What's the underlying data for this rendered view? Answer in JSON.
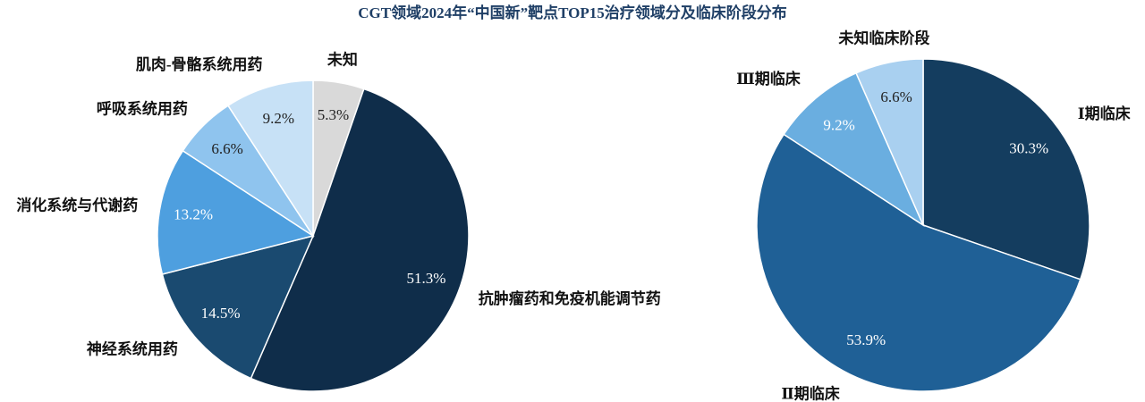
{
  "title": "CGT领域2024年“中国新”靶点TOP15治疗领域分及临床阶段分布",
  "chart_data": [
    {
      "type": "pie",
      "categories": [
        "未知",
        "抗肿瘤药和免疫机能调节药",
        "神经系统用药",
        "消化系统与代谢药",
        "呼吸系统用药",
        "肌肉-骨骼系统用药"
      ],
      "values": [
        5.3,
        51.3,
        14.5,
        13.2,
        6.6,
        9.2
      ],
      "value_labels": [
        "5.3%",
        "51.3%",
        "14.5%",
        "13.2%",
        "6.6%",
        "9.2%"
      ],
      "colors": [
        "#d9d9d9",
        "#0f2d4a",
        "#1a4a70",
        "#4e9fdf",
        "#8fc4ee",
        "#c7e1f6"
      ]
    },
    {
      "type": "pie",
      "categories": [
        "Ⅰ期临床",
        "Ⅱ期临床",
        "Ⅲ期临床",
        "未知临床阶段"
      ],
      "values": [
        30.3,
        53.9,
        9.2,
        6.6
      ],
      "value_labels": [
        "30.3%",
        "53.9%",
        "9.2%",
        "6.6%"
      ],
      "colors": [
        "#143d5f",
        "#1f6096",
        "#6aaee0",
        "#a9d0f0"
      ]
    }
  ]
}
